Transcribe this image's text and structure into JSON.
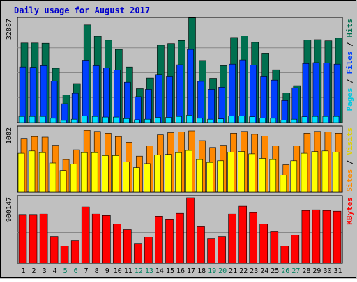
{
  "title": "Daily usage for August 2017",
  "colors": {
    "background": "#c0c0c0",
    "frame": "#ffffff",
    "border": "#000000",
    "title": "#0000cc",
    "hits": "#006f4f",
    "files": "#0040ff",
    "pages": "#00e0ff",
    "visits": "#ffff00",
    "sites": "#ff8800",
    "kbytes": "#ff0000",
    "weekday_label": "#000000",
    "weekend_label": "#008060"
  },
  "chart_data": [
    {
      "type": "bar",
      "name": "hits-files-pages",
      "ymax_label": "32887",
      "ylim": [
        0,
        32887
      ],
      "legend": {
        "parts": [
          {
            "text": "Pages",
            "color": "#00c8e0"
          },
          {
            "text": " / ",
            "color": "#000000"
          },
          {
            "text": "Files",
            "color": "#0040ff"
          },
          {
            "text": " / ",
            "color": "#000000"
          },
          {
            "text": "Hits",
            "color": "#006f4f"
          }
        ]
      },
      "categories": [
        "1",
        "2",
        "3",
        "4",
        "5",
        "6",
        "7",
        "8",
        "9",
        "10",
        "11",
        "12",
        "13",
        "14",
        "15",
        "16",
        "17",
        "18",
        "19",
        "20",
        "21",
        "22",
        "23",
        "24",
        "25",
        "26",
        "27",
        "28",
        "29",
        "30",
        "31"
      ],
      "series": [
        {
          "name": "Hits",
          "color": "#006f4f",
          "values": [
            25900,
            25900,
            25800,
            17700,
            9000,
            12700,
            31800,
            28100,
            26800,
            23800,
            18100,
            11000,
            14500,
            25200,
            25700,
            26700,
            34100,
            20200,
            14400,
            18500,
            27700,
            28200,
            26100,
            22600,
            17200,
            9600,
            12000,
            26900,
            27000,
            26600,
            27500
          ]
        },
        {
          "name": "Files",
          "color": "#0040ff",
          "values": [
            18100,
            18000,
            18500,
            13500,
            6100,
            9500,
            20300,
            18500,
            17800,
            17100,
            13100,
            8400,
            10800,
            15700,
            15100,
            18800,
            23800,
            13400,
            10800,
            11500,
            19000,
            20400,
            18700,
            15100,
            13800,
            7200,
            11300,
            19200,
            19500,
            19400,
            19000
          ]
        },
        {
          "name": "Pages",
          "color": "#00e0ff",
          "values": [
            2000,
            2000,
            2000,
            1400,
            700,
            1100,
            2100,
            2000,
            1800,
            1800,
            1300,
            900,
            1100,
            1700,
            1700,
            2000,
            2400,
            1400,
            1100,
            1200,
            2100,
            2100,
            1900,
            1500,
            1400,
            800,
            1100,
            1900,
            2000,
            2000,
            2000
          ]
        }
      ]
    },
    {
      "type": "bar",
      "name": "sites-visits",
      "ymax_label": "1082",
      "ylim": [
        0,
        1082
      ],
      "legend": {
        "parts": [
          {
            "text": "Sites",
            "color": "#ff8800"
          },
          {
            "text": " / ",
            "color": "#000000"
          },
          {
            "text": "Visits",
            "color": "#e0d000"
          }
        ]
      },
      "categories": [
        "1",
        "2",
        "3",
        "4",
        "5",
        "6",
        "7",
        "8",
        "9",
        "10",
        "11",
        "12",
        "13",
        "14",
        "15",
        "16",
        "17",
        "18",
        "19",
        "20",
        "21",
        "22",
        "23",
        "24",
        "25",
        "26",
        "27",
        "28",
        "29",
        "30",
        "31"
      ],
      "series": [
        {
          "name": "Sites",
          "color": "#ff8800",
          "values": [
            940,
            970,
            960,
            820,
            570,
            740,
            1080,
            1060,
            1030,
            970,
            870,
            630,
            810,
            1000,
            1040,
            1050,
            1070,
            900,
            780,
            820,
            1030,
            1060,
            1010,
            980,
            810,
            480,
            810,
            1030,
            1060,
            1050,
            1030
          ]
        },
        {
          "name": "Visits",
          "color": "#ffff00",
          "values": [
            680,
            720,
            690,
            510,
            380,
            490,
            690,
            690,
            640,
            640,
            530,
            430,
            500,
            650,
            660,
            690,
            730,
            570,
            520,
            550,
            700,
            710,
            670,
            590,
            570,
            300,
            550,
            680,
            710,
            720,
            700
          ]
        }
      ]
    },
    {
      "type": "bar",
      "name": "kbytes",
      "ymax_label": "900147",
      "ylim": [
        0,
        900147
      ],
      "legend": {
        "parts": [
          {
            "text": "KBytes",
            "color": "#ff0000"
          }
        ]
      },
      "categories": [
        "1",
        "2",
        "3",
        "4",
        "5",
        "6",
        "7",
        "8",
        "9",
        "10",
        "11",
        "12",
        "13",
        "14",
        "15",
        "16",
        "17",
        "18",
        "19",
        "20",
        "21",
        "22",
        "23",
        "24",
        "25",
        "26",
        "27",
        "28",
        "29",
        "30",
        "31"
      ],
      "series": [
        {
          "name": "KBytes",
          "color": "#ff0000",
          "values": [
            685000,
            685000,
            700000,
            380000,
            240000,
            320000,
            800000,
            700000,
            680000,
            560000,
            480000,
            280000,
            370000,
            670000,
            620000,
            710000,
            930000,
            520000,
            350000,
            380000,
            700000,
            810000,
            720000,
            560000,
            450000,
            240000,
            400000,
            750000,
            760000,
            750000,
            740000
          ]
        }
      ]
    }
  ],
  "x_labels": [
    {
      "text": "1",
      "weekend": false
    },
    {
      "text": "2",
      "weekend": false
    },
    {
      "text": "3",
      "weekend": false
    },
    {
      "text": "4",
      "weekend": false
    },
    {
      "text": "5",
      "weekend": true
    },
    {
      "text": "6",
      "weekend": true
    },
    {
      "text": "7",
      "weekend": false
    },
    {
      "text": "8",
      "weekend": false
    },
    {
      "text": "9",
      "weekend": false
    },
    {
      "text": "10",
      "weekend": false
    },
    {
      "text": "11",
      "weekend": false
    },
    {
      "text": "12",
      "weekend": true
    },
    {
      "text": "13",
      "weekend": true
    },
    {
      "text": "14",
      "weekend": false
    },
    {
      "text": "15",
      "weekend": false
    },
    {
      "text": "16",
      "weekend": false
    },
    {
      "text": "17",
      "weekend": false
    },
    {
      "text": "18",
      "weekend": false
    },
    {
      "text": "19",
      "weekend": true
    },
    {
      "text": "20",
      "weekend": true
    },
    {
      "text": "21",
      "weekend": false
    },
    {
      "text": "22",
      "weekend": false
    },
    {
      "text": "23",
      "weekend": false
    },
    {
      "text": "24",
      "weekend": false
    },
    {
      "text": "25",
      "weekend": false
    },
    {
      "text": "26",
      "weekend": true
    },
    {
      "text": "27",
      "weekend": true
    },
    {
      "text": "28",
      "weekend": false
    },
    {
      "text": "29",
      "weekend": false
    },
    {
      "text": "30",
      "weekend": false
    },
    {
      "text": "31",
      "weekend": false
    }
  ]
}
